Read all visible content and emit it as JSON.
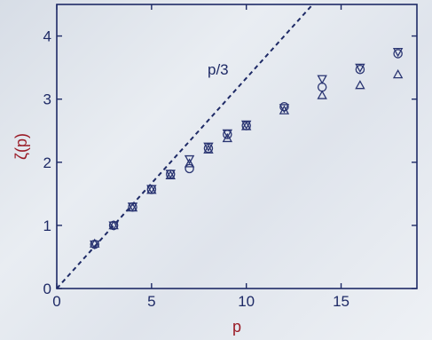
{
  "chart_data": {
    "type": "scatter",
    "xlabel": "p",
    "ylabel": "ζ(p)",
    "xlim": [
      0,
      19
    ],
    "ylim": [
      0,
      4.5
    ],
    "xticks": [
      "0",
      "5",
      "10",
      "15"
    ],
    "yticks": [
      "0",
      "1",
      "2",
      "3",
      "4"
    ],
    "grid": false,
    "colors": {
      "axis": "#1e2a66",
      "markers": "#2a3572",
      "label": "#9a1b26",
      "line": "#1e2a66"
    },
    "reference_line": {
      "label": "p/3",
      "slope": 0.3333,
      "style": "dashed"
    },
    "series": [
      {
        "marker": "circle",
        "x": [
          2,
          3,
          4,
          5,
          6,
          7,
          8,
          9,
          10,
          12,
          14,
          16,
          18
        ],
        "y": [
          0.7,
          1.0,
          1.29,
          1.57,
          1.81,
          1.9,
          2.22,
          2.44,
          2.58,
          2.88,
          3.19,
          3.47,
          3.72
        ]
      },
      {
        "marker": "triangle-up",
        "x": [
          2,
          3,
          4,
          5,
          6,
          7,
          8,
          9,
          10,
          12,
          14,
          16,
          18
        ],
        "y": [
          0.71,
          1.0,
          1.28,
          1.56,
          1.79,
          1.98,
          2.2,
          2.38,
          2.57,
          2.82,
          3.06,
          3.22,
          3.39
        ]
      },
      {
        "marker": "triangle-down",
        "x": [
          2,
          3,
          4,
          5,
          6,
          7,
          8,
          9,
          10,
          12,
          14,
          16,
          18
        ],
        "y": [
          0.7,
          1.0,
          1.3,
          1.58,
          1.82,
          2.05,
          2.25,
          2.46,
          2.6,
          2.86,
          3.32,
          3.5,
          3.75
        ]
      }
    ]
  }
}
